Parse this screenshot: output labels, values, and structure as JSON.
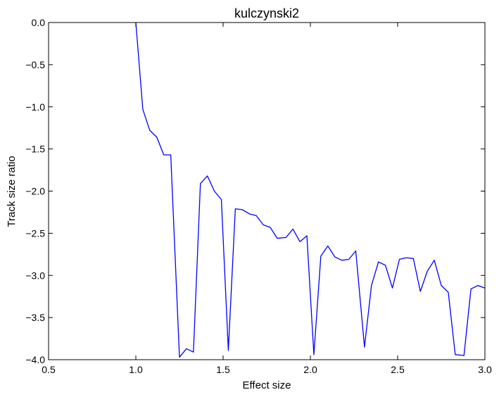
{
  "chart_data": {
    "type": "line",
    "title": "kulczynski2",
    "xlabel": "Effect size",
    "ylabel": "Track size ratio",
    "xlim": [
      0.5,
      3.0
    ],
    "ylim": [
      -4.0,
      0.0
    ],
    "xticks": [
      "0.5",
      "1.0",
      "1.5",
      "2.0",
      "2.5",
      "3.0"
    ],
    "yticks": [
      "0.0",
      "−0.5",
      "−1.0",
      "−1.5",
      "−2.0",
      "−2.5",
      "−3.0",
      "−3.5",
      "−4.0"
    ],
    "grid": false,
    "legend": "none",
    "line_color": "#0000ff",
    "series": [
      {
        "x": [
          1.0,
          1.04,
          1.08,
          1.12,
          1.16,
          1.2,
          1.25,
          1.29,
          1.33,
          1.37,
          1.41,
          1.45,
          1.49,
          1.53,
          1.57,
          1.61,
          1.65,
          1.69,
          1.73,
          1.77,
          1.81,
          1.86,
          1.9,
          1.94,
          1.98,
          2.02,
          2.06,
          2.1,
          2.14,
          2.18,
          2.22,
          2.26,
          2.31,
          2.35,
          2.39,
          2.43,
          2.47,
          2.51,
          2.55,
          2.59,
          2.63,
          2.67,
          2.71,
          2.75,
          2.79,
          2.83,
          2.88,
          2.92,
          2.96,
          3.0
        ],
        "y": [
          0.0,
          -1.03,
          -1.28,
          -1.36,
          -1.57,
          -1.57,
          -3.97,
          -3.87,
          -3.91,
          -1.91,
          -1.82,
          -2.0,
          -2.1,
          -3.89,
          -2.21,
          -2.22,
          -2.27,
          -2.29,
          -2.4,
          -2.43,
          -2.56,
          -2.55,
          -2.45,
          -2.6,
          -2.53,
          -3.94,
          -2.77,
          -2.65,
          -2.78,
          -2.82,
          -2.81,
          -2.71,
          -3.85,
          -3.12,
          -2.84,
          -2.88,
          -3.15,
          -2.81,
          -2.79,
          -2.8,
          -3.19,
          -2.95,
          -2.82,
          -3.12,
          -3.2,
          -3.94,
          -3.95,
          -3.16,
          -3.12,
          -3.15
        ]
      }
    ]
  }
}
